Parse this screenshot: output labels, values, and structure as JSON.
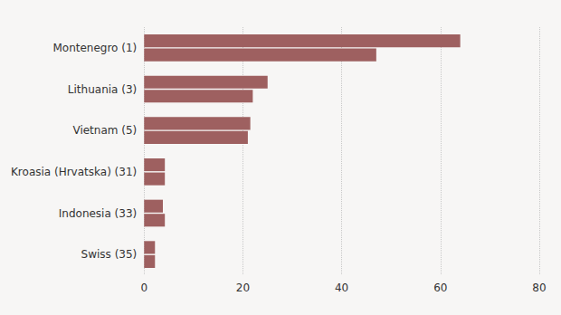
{
  "chart_data": {
    "type": "bar",
    "orientation": "horizontal",
    "categories": [
      "Montenegro (1)",
      "Lithuania (3)",
      "Vietnam (5)",
      "Kroasia (Hrvatska) (31)",
      "Indonesia (33)",
      "Swiss (35)"
    ],
    "series": [
      {
        "color": "#9e6060",
        "values": [
          64.0,
          25.0,
          21.5,
          4.2,
          3.8,
          2.2
        ]
      },
      {
        "color": "#9e6060",
        "values": [
          47.0,
          22.0,
          21.0,
          4.2,
          4.2,
          2.2
        ]
      }
    ],
    "xlim": [
      0,
      80
    ],
    "xticks": [
      0,
      20,
      40,
      60,
      80
    ],
    "grid": true
  }
}
